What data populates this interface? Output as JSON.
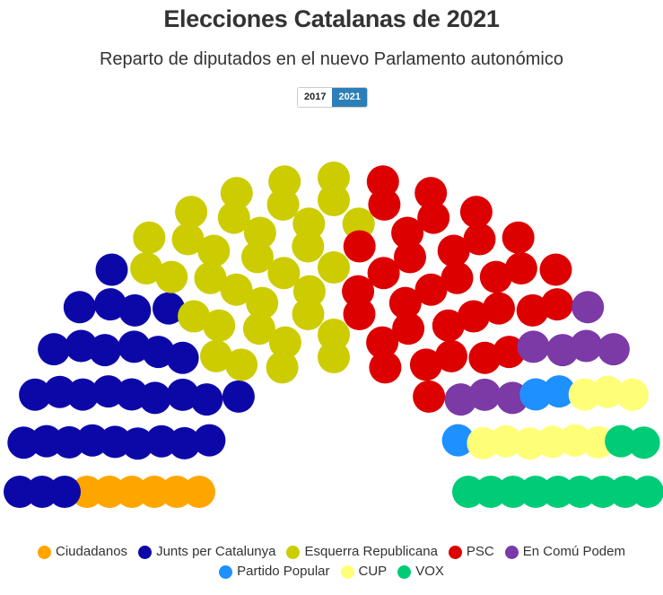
{
  "title": "Elecciones Catalanas de 2021",
  "subtitle": "Reparto de diputados en el nuevo Parlamento autonómico",
  "year_buttons": [
    {
      "label": "2017",
      "active": false
    },
    {
      "label": "2021",
      "active": true
    }
  ],
  "chart_data": {
    "type": "parliament",
    "title": "Elecciones Catalanas de 2021",
    "subtitle": "Reparto de diputados en el nuevo Parlamento autonómico",
    "total_seats": 135,
    "legend_placement": "bottom",
    "series": [
      {
        "name": "Ciudadanos",
        "seats": 6,
        "color": "#ffa500"
      },
      {
        "name": "Junts per Catalunya",
        "seats": 32,
        "color": "#0c08a8"
      },
      {
        "name": "Esquerra Republicana",
        "seats": 33,
        "color": "#cccc00"
      },
      {
        "name": "PSC",
        "seats": 33,
        "color": "#dd0000"
      },
      {
        "name": "En Comú Podem",
        "seats": 8,
        "color": "#7b3aa6"
      },
      {
        "name": "Partido Popular",
        "seats": 3,
        "color": "#1e90ff"
      },
      {
        "name": "CUP",
        "seats": 9,
        "color": "#ffff77"
      },
      {
        "name": "VOX",
        "seats": 11,
        "color": "#00cc77"
      }
    ]
  }
}
